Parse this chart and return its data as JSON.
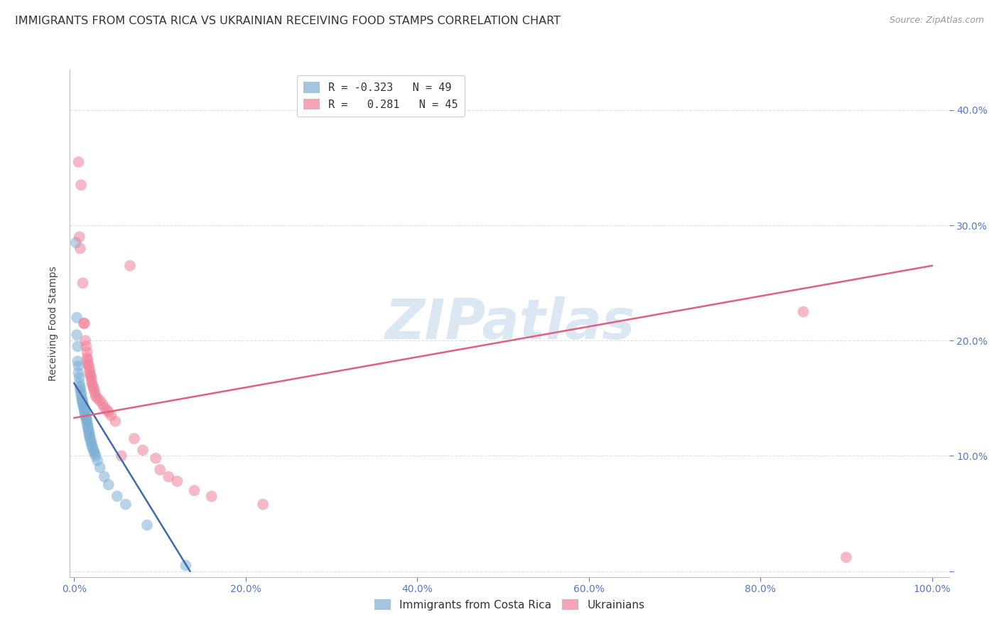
{
  "title": "IMMIGRANTS FROM COSTA RICA VS UKRAINIAN RECEIVING FOOD STAMPS CORRELATION CHART",
  "source": "Source: ZipAtlas.com",
  "ylabel": "Receiving Food Stamps",
  "yticks": [
    0.0,
    0.1,
    0.2,
    0.3,
    0.4
  ],
  "xticks": [
    0.0,
    0.2,
    0.4,
    0.6,
    0.8,
    1.0
  ],
  "xlim": [
    -0.005,
    1.02
  ],
  "ylim": [
    -0.005,
    0.435
  ],
  "legend_entries": [
    {
      "label": "R = -0.323   N = 49",
      "color": "#a8c4e0"
    },
    {
      "label": "R =   0.281   N = 45",
      "color": "#f0a0b0"
    }
  ],
  "costa_rica_points": [
    [
      0.002,
      0.285
    ],
    [
      0.003,
      0.22
    ],
    [
      0.003,
      0.205
    ],
    [
      0.004,
      0.195
    ],
    [
      0.004,
      0.182
    ],
    [
      0.005,
      0.178
    ],
    [
      0.005,
      0.172
    ],
    [
      0.006,
      0.168
    ],
    [
      0.006,
      0.163
    ],
    [
      0.007,
      0.16
    ],
    [
      0.007,
      0.158
    ],
    [
      0.008,
      0.155
    ],
    [
      0.008,
      0.153
    ],
    [
      0.009,
      0.15
    ],
    [
      0.009,
      0.148
    ],
    [
      0.01,
      0.147
    ],
    [
      0.01,
      0.145
    ],
    [
      0.011,
      0.143
    ],
    [
      0.011,
      0.142
    ],
    [
      0.012,
      0.14
    ],
    [
      0.012,
      0.138
    ],
    [
      0.013,
      0.137
    ],
    [
      0.013,
      0.135
    ],
    [
      0.014,
      0.133
    ],
    [
      0.014,
      0.132
    ],
    [
      0.015,
      0.13
    ],
    [
      0.015,
      0.128
    ],
    [
      0.016,
      0.126
    ],
    [
      0.016,
      0.124
    ],
    [
      0.017,
      0.122
    ],
    [
      0.017,
      0.12
    ],
    [
      0.018,
      0.118
    ],
    [
      0.018,
      0.116
    ],
    [
      0.019,
      0.114
    ],
    [
      0.02,
      0.112
    ],
    [
      0.02,
      0.11
    ],
    [
      0.021,
      0.108
    ],
    [
      0.022,
      0.106
    ],
    [
      0.023,
      0.104
    ],
    [
      0.024,
      0.102
    ],
    [
      0.025,
      0.1
    ],
    [
      0.027,
      0.096
    ],
    [
      0.03,
      0.09
    ],
    [
      0.035,
      0.082
    ],
    [
      0.04,
      0.075
    ],
    [
      0.05,
      0.065
    ],
    [
      0.06,
      0.058
    ],
    [
      0.085,
      0.04
    ],
    [
      0.13,
      0.005
    ]
  ],
  "ukrainian_points": [
    [
      0.005,
      0.355
    ],
    [
      0.006,
      0.29
    ],
    [
      0.007,
      0.28
    ],
    [
      0.008,
      0.335
    ],
    [
      0.01,
      0.25
    ],
    [
      0.011,
      0.215
    ],
    [
      0.012,
      0.215
    ],
    [
      0.013,
      0.2
    ],
    [
      0.014,
      0.195
    ],
    [
      0.015,
      0.19
    ],
    [
      0.015,
      0.185
    ],
    [
      0.016,
      0.183
    ],
    [
      0.016,
      0.18
    ],
    [
      0.017,
      0.178
    ],
    [
      0.018,
      0.175
    ],
    [
      0.018,
      0.172
    ],
    [
      0.019,
      0.17
    ],
    [
      0.02,
      0.168
    ],
    [
      0.02,
      0.165
    ],
    [
      0.021,
      0.162
    ],
    [
      0.022,
      0.16
    ],
    [
      0.023,
      0.158
    ],
    [
      0.024,
      0.155
    ],
    [
      0.025,
      0.152
    ],
    [
      0.027,
      0.15
    ],
    [
      0.03,
      0.148
    ],
    [
      0.033,
      0.145
    ],
    [
      0.035,
      0.142
    ],
    [
      0.038,
      0.14
    ],
    [
      0.04,
      0.138
    ],
    [
      0.043,
      0.135
    ],
    [
      0.048,
      0.13
    ],
    [
      0.055,
      0.1
    ],
    [
      0.065,
      0.265
    ],
    [
      0.07,
      0.115
    ],
    [
      0.08,
      0.105
    ],
    [
      0.095,
      0.098
    ],
    [
      0.1,
      0.088
    ],
    [
      0.11,
      0.082
    ],
    [
      0.12,
      0.078
    ],
    [
      0.14,
      0.07
    ],
    [
      0.16,
      0.065
    ],
    [
      0.22,
      0.058
    ],
    [
      0.85,
      0.225
    ],
    [
      0.9,
      0.012
    ]
  ],
  "costa_rica_line": {
    "x": [
      0.0,
      0.135
    ],
    "y": [
      0.163,
      0.0
    ]
  },
  "ukrainian_line": {
    "x": [
      0.0,
      1.0
    ],
    "y": [
      0.133,
      0.265
    ]
  },
  "blue_color": "#7bafd4",
  "pink_color": "#f08098",
  "blue_line_color": "#4169b0",
  "pink_line_color": "#e06080",
  "watermark": "ZIPatlas",
  "watermark_color": "#c5d8ee",
  "background_color": "#ffffff",
  "grid_color": "#e0e0e0",
  "title_fontsize": 11.5,
  "axis_label_fontsize": 10,
  "tick_fontsize": 10,
  "tick_color": "#5577cc",
  "legend1_label1": "R = -0.323   N = 49",
  "legend1_label2": "R =   0.281   N = 45",
  "legend2_label1": "Immigrants from Costa Rica",
  "legend2_label2": "Ukrainians"
}
